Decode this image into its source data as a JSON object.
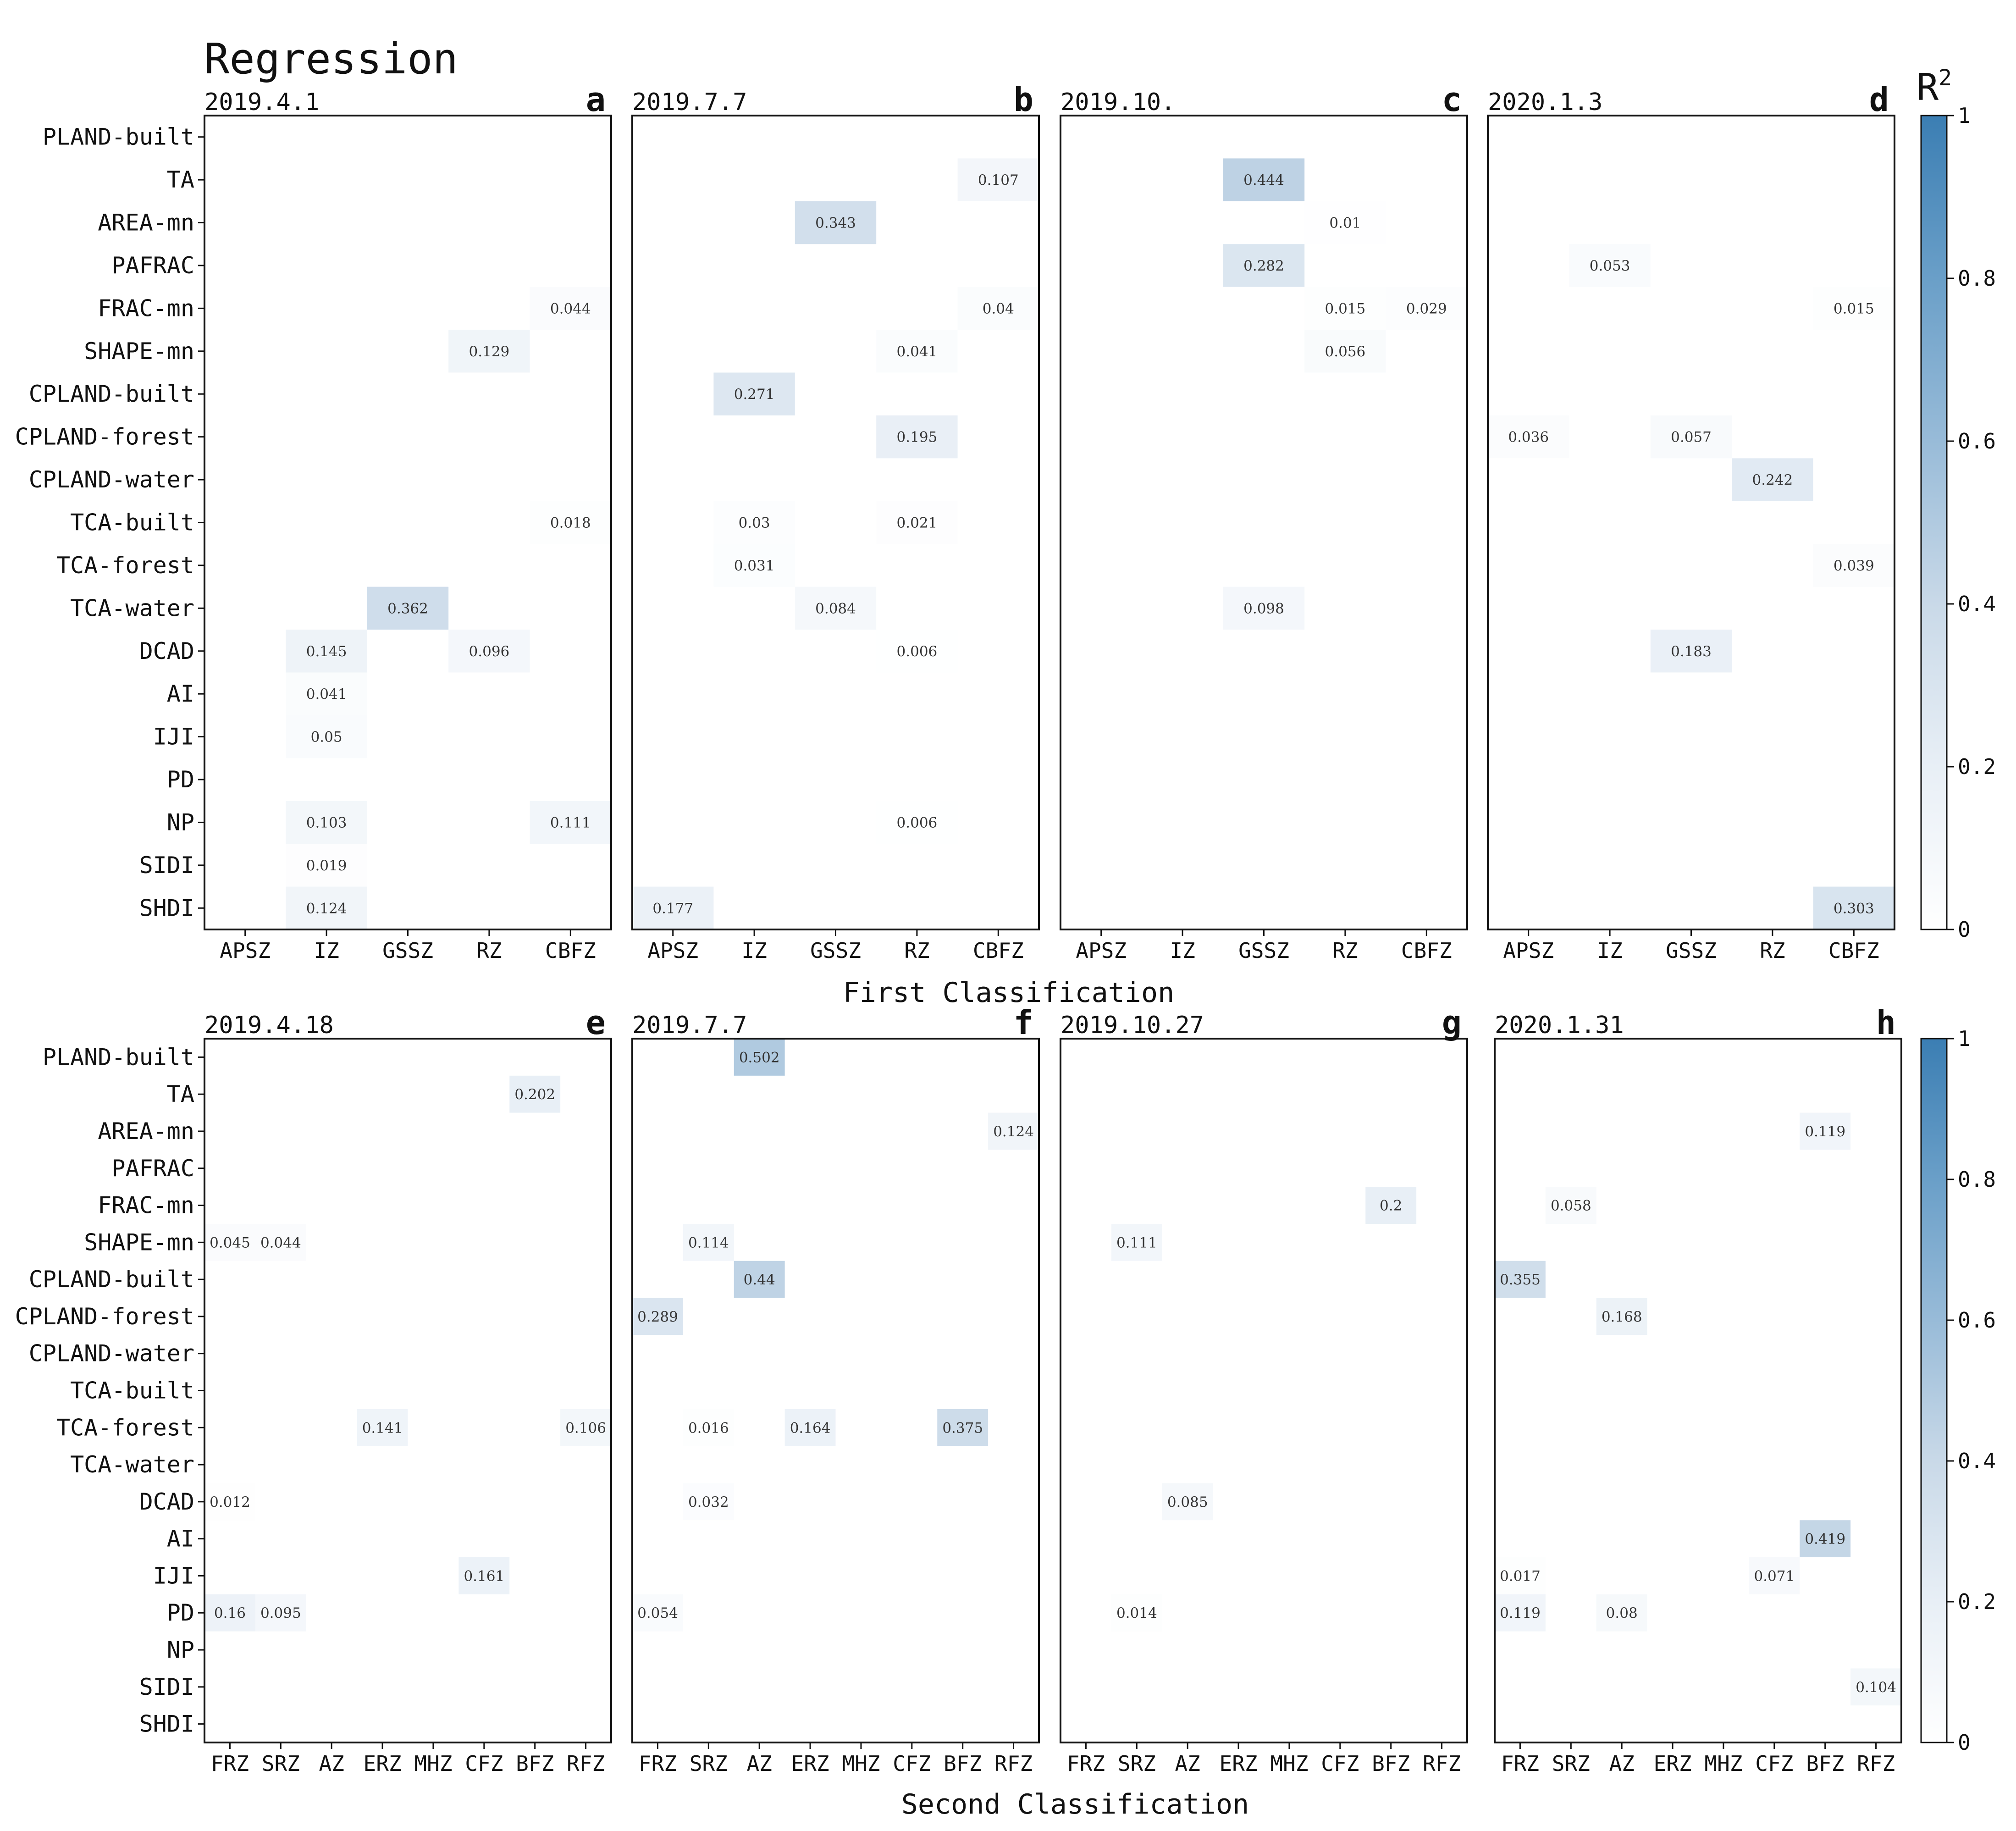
{
  "figure_title": "Regression",
  "colorbar_title": "R",
  "colorbar_superscript": "2",
  "colorbar_ticks": [
    "0",
    "0.2",
    "0.4",
    "0.6",
    "0.8",
    "1"
  ],
  "row_titles": {
    "top": "First Classification",
    "bottom": "Second Classification"
  },
  "chart_data": [
    {
      "type": "heatmap",
      "panel": "a",
      "date": "2019.4.1",
      "xlabels": [
        "APSZ",
        "IZ",
        "GSSZ",
        "RZ",
        "CBFZ"
      ],
      "ylabels": [
        "PLAND-built",
        "TA",
        "AREA-mn",
        "PAFRAC",
        "FRAC-mn",
        "SHAPE-mn",
        "CPLAND-built",
        "CPLAND-forest",
        "CPLAND-water",
        "TCA-built",
        "TCA-forest",
        "TCA-water",
        "DCAD",
        "AI",
        "IJI",
        "PD",
        "NP",
        "SIDI",
        "SHDI"
      ],
      "clim": [
        0,
        1
      ],
      "cells": [
        {
          "x": "CBFZ",
          "y": "FRAC-mn",
          "value": "0.044"
        },
        {
          "x": "RZ",
          "y": "SHAPE-mn",
          "value": "0.129"
        },
        {
          "x": "CBFZ",
          "y": "TCA-built",
          "value": "0.018"
        },
        {
          "x": "GSSZ",
          "y": "TCA-water",
          "value": "0.362"
        },
        {
          "x": "IZ",
          "y": "DCAD",
          "value": "0.145"
        },
        {
          "x": "RZ",
          "y": "DCAD",
          "value": "0.096"
        },
        {
          "x": "IZ",
          "y": "AI",
          "value": "0.041"
        },
        {
          "x": "IZ",
          "y": "IJI",
          "value": "0.05"
        },
        {
          "x": "IZ",
          "y": "NP",
          "value": "0.103"
        },
        {
          "x": "CBFZ",
          "y": "NP",
          "value": "0.111"
        },
        {
          "x": "IZ",
          "y": "SIDI",
          "value": "0.019"
        },
        {
          "x": "IZ",
          "y": "SHDI",
          "value": "0.124"
        }
      ]
    },
    {
      "type": "heatmap",
      "panel": "b",
      "date": "2019.7.7",
      "xlabels": [
        "APSZ",
        "IZ",
        "GSSZ",
        "RZ",
        "CBFZ"
      ],
      "ylabels": [
        "PLAND-built",
        "TA",
        "AREA-mn",
        "PAFRAC",
        "FRAC-mn",
        "SHAPE-mn",
        "CPLAND-built",
        "CPLAND-forest",
        "CPLAND-water",
        "TCA-built",
        "TCA-forest",
        "TCA-water",
        "DCAD",
        "AI",
        "IJI",
        "PD",
        "NP",
        "SIDI",
        "SHDI"
      ],
      "clim": [
        0,
        1
      ],
      "cells": [
        {
          "x": "CBFZ",
          "y": "TA",
          "value": "0.107"
        },
        {
          "x": "GSSZ",
          "y": "AREA-mn",
          "value": "0.343"
        },
        {
          "x": "CBFZ",
          "y": "FRAC-mn",
          "value": "0.04"
        },
        {
          "x": "RZ",
          "y": "SHAPE-mn",
          "value": "0.041"
        },
        {
          "x": "IZ",
          "y": "CPLAND-built",
          "value": "0.271"
        },
        {
          "x": "RZ",
          "y": "CPLAND-forest",
          "value": "0.195"
        },
        {
          "x": "IZ",
          "y": "TCA-built",
          "value": "0.03"
        },
        {
          "x": "RZ",
          "y": "TCA-built",
          "value": "0.021"
        },
        {
          "x": "IZ",
          "y": "TCA-forest",
          "value": "0.031"
        },
        {
          "x": "GSSZ",
          "y": "TCA-water",
          "value": "0.084"
        },
        {
          "x": "RZ",
          "y": "DCAD",
          "value": "0.006"
        },
        {
          "x": "RZ",
          "y": "NP",
          "value": "0.006"
        },
        {
          "x": "APSZ",
          "y": "SHDI",
          "value": "0.177"
        }
      ]
    },
    {
      "type": "heatmap",
      "panel": "c",
      "date": "2019.10.",
      "xlabels": [
        "APSZ",
        "IZ",
        "GSSZ",
        "RZ",
        "CBFZ"
      ],
      "ylabels": [
        "PLAND-built",
        "TA",
        "AREA-mn",
        "PAFRAC",
        "FRAC-mn",
        "SHAPE-mn",
        "CPLAND-built",
        "CPLAND-forest",
        "CPLAND-water",
        "TCA-built",
        "TCA-forest",
        "TCA-water",
        "DCAD",
        "AI",
        "IJI",
        "PD",
        "NP",
        "SIDI",
        "SHDI"
      ],
      "clim": [
        0,
        1
      ],
      "cells": [
        {
          "x": "GSSZ",
          "y": "TA",
          "value": "0.444"
        },
        {
          "x": "RZ",
          "y": "AREA-mn",
          "value": "0.01"
        },
        {
          "x": "GSSZ",
          "y": "PAFRAC",
          "value": "0.282"
        },
        {
          "x": "RZ",
          "y": "FRAC-mn",
          "value": "0.015"
        },
        {
          "x": "CBFZ",
          "y": "FRAC-mn",
          "value": "0.029"
        },
        {
          "x": "RZ",
          "y": "SHAPE-mn",
          "value": "0.056"
        },
        {
          "x": "GSSZ",
          "y": "TCA-water",
          "value": "0.098"
        }
      ]
    },
    {
      "type": "heatmap",
      "panel": "d",
      "date": "2020.1.3",
      "xlabels": [
        "APSZ",
        "IZ",
        "GSSZ",
        "RZ",
        "CBFZ"
      ],
      "ylabels": [
        "PLAND-built",
        "TA",
        "AREA-mn",
        "PAFRAC",
        "FRAC-mn",
        "SHAPE-mn",
        "CPLAND-built",
        "CPLAND-forest",
        "CPLAND-water",
        "TCA-built",
        "TCA-forest",
        "TCA-water",
        "DCAD",
        "AI",
        "IJI",
        "PD",
        "NP",
        "SIDI",
        "SHDI"
      ],
      "clim": [
        0,
        1
      ],
      "cells": [
        {
          "x": "IZ",
          "y": "PAFRAC",
          "value": "0.053"
        },
        {
          "x": "CBFZ",
          "y": "FRAC-mn",
          "value": "0.015"
        },
        {
          "x": "APSZ",
          "y": "CPLAND-forest",
          "value": "0.036"
        },
        {
          "x": "GSSZ",
          "y": "CPLAND-forest",
          "value": "0.057"
        },
        {
          "x": "RZ",
          "y": "CPLAND-water",
          "value": "0.242"
        },
        {
          "x": "CBFZ",
          "y": "TCA-forest",
          "value": "0.039"
        },
        {
          "x": "GSSZ",
          "y": "DCAD",
          "value": "0.183"
        },
        {
          "x": "CBFZ",
          "y": "SHDI",
          "value": "0.303"
        }
      ]
    },
    {
      "type": "heatmap",
      "panel": "e",
      "date": "2019.4.18",
      "xlabels": [
        "FRZ",
        "SRZ",
        "AZ",
        "ERZ",
        "MHZ",
        "CFZ",
        "BFZ",
        "RFZ"
      ],
      "ylabels": [
        "PLAND-built",
        "TA",
        "AREA-mn",
        "PAFRAC",
        "FRAC-mn",
        "SHAPE-mn",
        "CPLAND-built",
        "CPLAND-forest",
        "CPLAND-water",
        "TCA-built",
        "TCA-forest",
        "TCA-water",
        "DCAD",
        "AI",
        "IJI",
        "PD",
        "NP",
        "SIDI",
        "SHDI"
      ],
      "clim": [
        0,
        1
      ],
      "cells": [
        {
          "x": "BFZ",
          "y": "TA",
          "value": "0.202"
        },
        {
          "x": "FRZ",
          "y": "SHAPE-mn",
          "value": "0.045"
        },
        {
          "x": "SRZ",
          "y": "SHAPE-mn",
          "value": "0.044"
        },
        {
          "x": "ERZ",
          "y": "TCA-forest",
          "value": "0.141"
        },
        {
          "x": "RFZ",
          "y": "TCA-forest",
          "value": "0.106"
        },
        {
          "x": "FRZ",
          "y": "DCAD",
          "value": "0.012"
        },
        {
          "x": "CFZ",
          "y": "IJI",
          "value": "0.161"
        },
        {
          "x": "FRZ",
          "y": "PD",
          "value": "0.16"
        },
        {
          "x": "SRZ",
          "y": "PD",
          "value": "0.095"
        }
      ]
    },
    {
      "type": "heatmap",
      "panel": "f",
      "date": "2019.7.7",
      "xlabels": [
        "FRZ",
        "SRZ",
        "AZ",
        "ERZ",
        "MHZ",
        "CFZ",
        "BFZ",
        "RFZ"
      ],
      "ylabels": [
        "PLAND-built",
        "TA",
        "AREA-mn",
        "PAFRAC",
        "FRAC-mn",
        "SHAPE-mn",
        "CPLAND-built",
        "CPLAND-forest",
        "CPLAND-water",
        "TCA-built",
        "TCA-forest",
        "TCA-water",
        "DCAD",
        "AI",
        "IJI",
        "PD",
        "NP",
        "SIDI",
        "SHDI"
      ],
      "clim": [
        0,
        1
      ],
      "cells": [
        {
          "x": "AZ",
          "y": "PLAND-built",
          "value": "0.502"
        },
        {
          "x": "RFZ",
          "y": "AREA-mn",
          "value": "0.124"
        },
        {
          "x": "SRZ",
          "y": "SHAPE-mn",
          "value": "0.114"
        },
        {
          "x": "AZ",
          "y": "CPLAND-built",
          "value": "0.44"
        },
        {
          "x": "FRZ",
          "y": "CPLAND-forest",
          "value": "0.289"
        },
        {
          "x": "SRZ",
          "y": "TCA-forest",
          "value": "0.016"
        },
        {
          "x": "ERZ",
          "y": "TCA-forest",
          "value": "0.164"
        },
        {
          "x": "BFZ",
          "y": "TCA-forest",
          "value": "0.375"
        },
        {
          "x": "SRZ",
          "y": "DCAD",
          "value": "0.032"
        },
        {
          "x": "FRZ",
          "y": "PD",
          "value": "0.054"
        }
      ]
    },
    {
      "type": "heatmap",
      "panel": "g",
      "date": "2019.10.27",
      "xlabels": [
        "FRZ",
        "SRZ",
        "AZ",
        "ERZ",
        "MHZ",
        "CFZ",
        "BFZ",
        "RFZ"
      ],
      "ylabels": [
        "PLAND-built",
        "TA",
        "AREA-mn",
        "PAFRAC",
        "FRAC-mn",
        "SHAPE-mn",
        "CPLAND-built",
        "CPLAND-forest",
        "CPLAND-water",
        "TCA-built",
        "TCA-forest",
        "TCA-water",
        "DCAD",
        "AI",
        "IJI",
        "PD",
        "NP",
        "SIDI",
        "SHDI"
      ],
      "clim": [
        0,
        1
      ],
      "cells": [
        {
          "x": "BFZ",
          "y": "FRAC-mn",
          "value": "0.2"
        },
        {
          "x": "SRZ",
          "y": "SHAPE-mn",
          "value": "0.111"
        },
        {
          "x": "AZ",
          "y": "DCAD",
          "value": "0.085"
        },
        {
          "x": "SRZ",
          "y": "PD",
          "value": "0.014"
        }
      ]
    },
    {
      "type": "heatmap",
      "panel": "h",
      "date": "2020.1.31",
      "xlabels": [
        "FRZ",
        "SRZ",
        "AZ",
        "ERZ",
        "MHZ",
        "CFZ",
        "BFZ",
        "RFZ"
      ],
      "ylabels": [
        "PLAND-built",
        "TA",
        "AREA-mn",
        "PAFRAC",
        "FRAC-mn",
        "SHAPE-mn",
        "CPLAND-built",
        "CPLAND-forest",
        "CPLAND-water",
        "TCA-built",
        "TCA-forest",
        "TCA-water",
        "DCAD",
        "AI",
        "IJI",
        "PD",
        "NP",
        "SIDI",
        "SHDI"
      ],
      "clim": [
        0,
        1
      ],
      "cells": [
        {
          "x": "BFZ",
          "y": "AREA-mn",
          "value": "0.119"
        },
        {
          "x": "SRZ",
          "y": "FRAC-mn",
          "value": "0.058"
        },
        {
          "x": "FRZ",
          "y": "CPLAND-built",
          "value": "0.355"
        },
        {
          "x": "AZ",
          "y": "CPLAND-forest",
          "value": "0.168"
        },
        {
          "x": "BFZ",
          "y": "AI",
          "value": "0.419"
        },
        {
          "x": "FRZ",
          "y": "IJI",
          "value": "0.017"
        },
        {
          "x": "CFZ",
          "y": "IJI",
          "value": "0.071"
        },
        {
          "x": "FRZ",
          "y": "PD",
          "value": "0.119"
        },
        {
          "x": "AZ",
          "y": "PD",
          "value": "0.08"
        },
        {
          "x": "RFZ",
          "y": "SIDI",
          "value": "0.104"
        }
      ]
    }
  ]
}
